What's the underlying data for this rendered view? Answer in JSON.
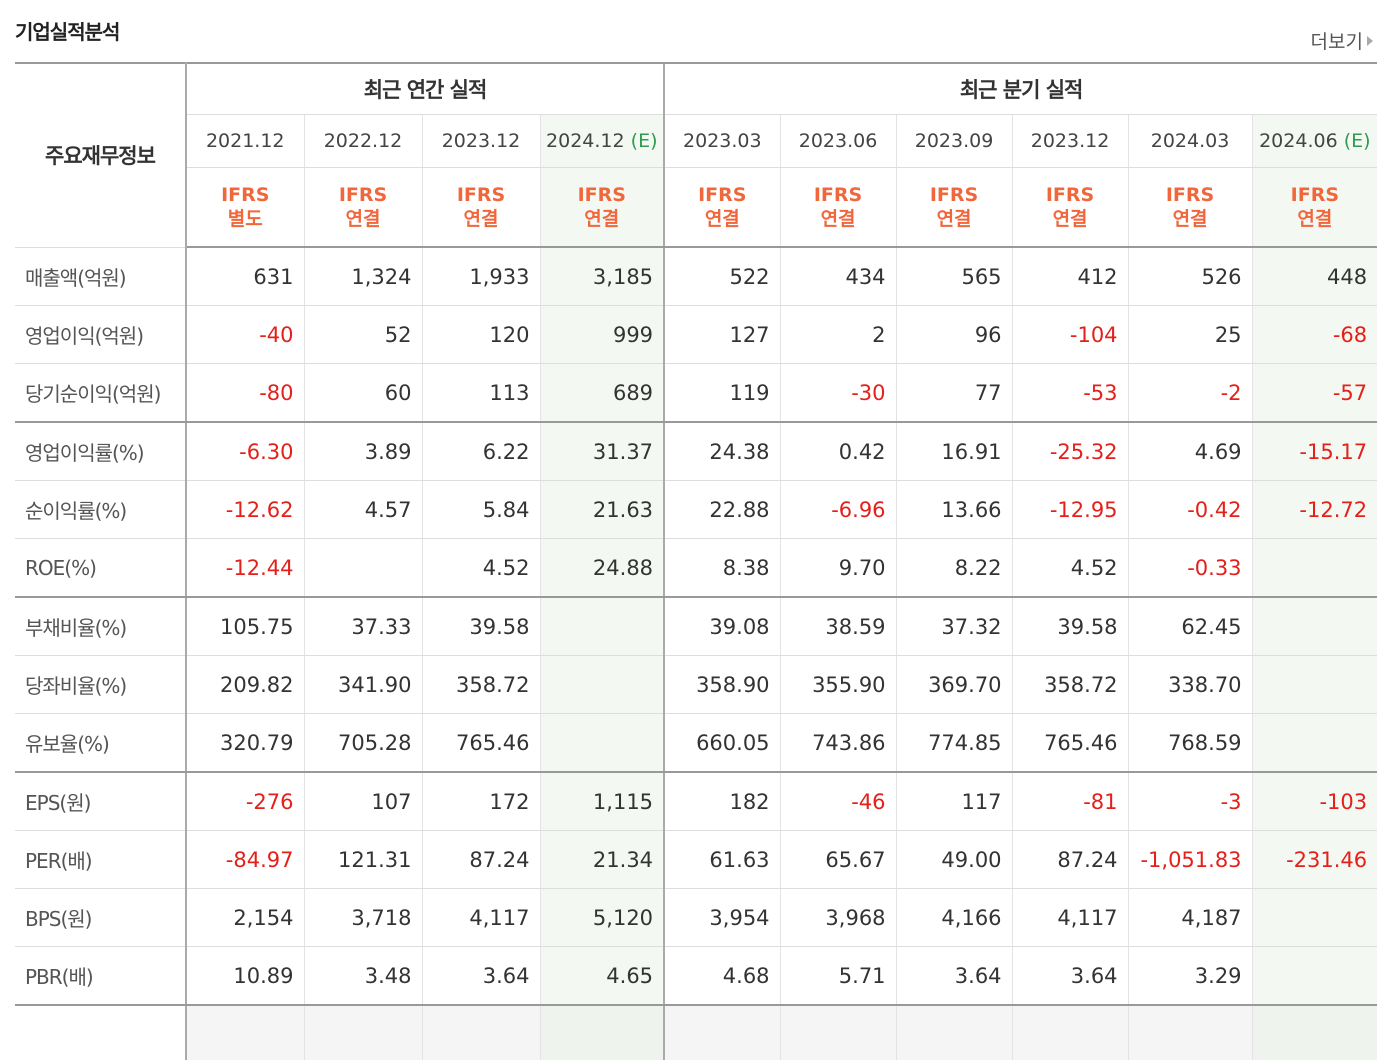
{
  "header": {
    "title": "기업실적분석",
    "more_label": "더보기"
  },
  "table": {
    "corner_label": "주요재무정보",
    "groups": {
      "annual": "최근 연간 실적",
      "quarterly": "최근 분기 실적"
    },
    "periods": [
      {
        "date": "2021.12",
        "est": "",
        "basis1": "IFRS",
        "basis2": "별도"
      },
      {
        "date": "2022.12",
        "est": "",
        "basis1": "IFRS",
        "basis2": "연결"
      },
      {
        "date": "2023.12",
        "est": "",
        "basis1": "IFRS",
        "basis2": "연결"
      },
      {
        "date": "2024.12",
        "est": "(E)",
        "basis1": "IFRS",
        "basis2": "연결"
      },
      {
        "date": "2023.03",
        "est": "",
        "basis1": "IFRS",
        "basis2": "연결"
      },
      {
        "date": "2023.06",
        "est": "",
        "basis1": "IFRS",
        "basis2": "연결"
      },
      {
        "date": "2023.09",
        "est": "",
        "basis1": "IFRS",
        "basis2": "연결"
      },
      {
        "date": "2023.12",
        "est": "",
        "basis1": "IFRS",
        "basis2": "연결"
      },
      {
        "date": "2024.03",
        "est": "",
        "basis1": "IFRS",
        "basis2": "연결"
      },
      {
        "date": "2024.06",
        "est": "(E)",
        "basis1": "IFRS",
        "basis2": "연결"
      }
    ],
    "rows": [
      {
        "label": "매출액(억원)",
        "v": [
          "631",
          "1,324",
          "1,933",
          "3,185",
          "522",
          "434",
          "565",
          "412",
          "526",
          "448"
        ]
      },
      {
        "label": "영업이익(억원)",
        "v": [
          "-40",
          "52",
          "120",
          "999",
          "127",
          "2",
          "96",
          "-104",
          "25",
          "-68"
        ]
      },
      {
        "label": "당기순이익(억원)",
        "v": [
          "-80",
          "60",
          "113",
          "689",
          "119",
          "-30",
          "77",
          "-53",
          "-2",
          "-57"
        ]
      },
      {
        "label": "영업이익률(%)",
        "v": [
          "-6.30",
          "3.89",
          "6.22",
          "31.37",
          "24.38",
          "0.42",
          "16.91",
          "-25.32",
          "4.69",
          "-15.17"
        ]
      },
      {
        "label": "순이익률(%)",
        "v": [
          "-12.62",
          "4.57",
          "5.84",
          "21.63",
          "22.88",
          "-6.96",
          "13.66",
          "-12.95",
          "-0.42",
          "-12.72"
        ]
      },
      {
        "label": "ROE(%)",
        "v": [
          "-12.44",
          "",
          "4.52",
          "24.88",
          "8.38",
          "9.70",
          "8.22",
          "4.52",
          "-0.33",
          ""
        ]
      },
      {
        "label": "부채비율(%)",
        "v": [
          "105.75",
          "37.33",
          "39.58",
          "",
          "39.08",
          "38.59",
          "37.32",
          "39.58",
          "62.45",
          ""
        ]
      },
      {
        "label": "당좌비율(%)",
        "v": [
          "209.82",
          "341.90",
          "358.72",
          "",
          "358.90",
          "355.90",
          "369.70",
          "358.72",
          "338.70",
          ""
        ]
      },
      {
        "label": "유보율(%)",
        "v": [
          "320.79",
          "705.28",
          "765.46",
          "",
          "660.05",
          "743.86",
          "774.85",
          "765.46",
          "768.59",
          ""
        ]
      },
      {
        "label": "EPS(원)",
        "v": [
          "-276",
          "107",
          "172",
          "1,115",
          "182",
          "-46",
          "117",
          "-81",
          "-3",
          "-103"
        ]
      },
      {
        "label": "PER(배)",
        "v": [
          "-84.97",
          "121.31",
          "87.24",
          "21.34",
          "61.63",
          "65.67",
          "49.00",
          "87.24",
          "-1,051.83",
          "-231.46"
        ]
      },
      {
        "label": "BPS(원)",
        "v": [
          "2,154",
          "3,718",
          "4,117",
          "5,120",
          "3,954",
          "3,968",
          "4,166",
          "4,117",
          "4,187",
          ""
        ]
      },
      {
        "label": "PBR(배)",
        "v": [
          "10.89",
          "3.48",
          "3.64",
          "4.65",
          "4.68",
          "5.71",
          "3.64",
          "3.64",
          "3.29",
          ""
        ]
      }
    ],
    "group_break_after": [
      2,
      5,
      8,
      12
    ],
    "colors": {
      "negative": "#e4201a",
      "estimate": "#2e9b4e",
      "basis": "#f0673c",
      "highlight": "#f3f8f3"
    }
  }
}
